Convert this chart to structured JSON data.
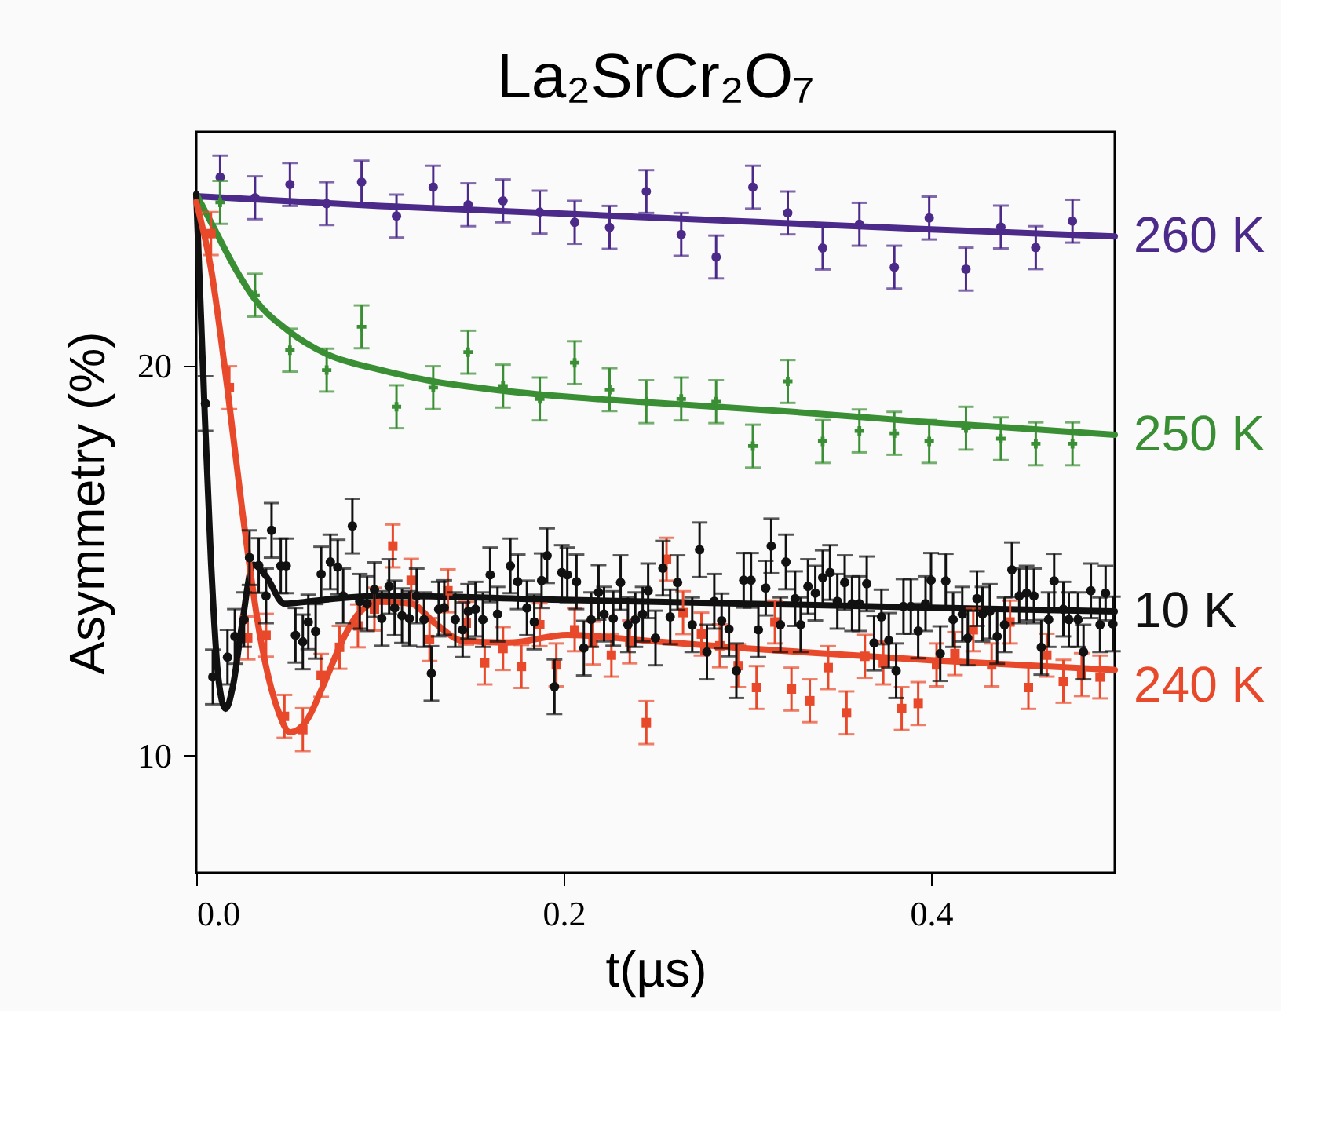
{
  "chart_data": {
    "type": "scatter",
    "title": "La₂SrCr₂O₇",
    "xlabel": "t(µs)",
    "ylabel": "Asymmetry (%)",
    "xlim": [
      0,
      0.5
    ],
    "ylim": [
      7,
      26
    ],
    "xticks": [
      {
        "value": 0,
        "label": "0.0"
      },
      {
        "value": 0.2,
        "label": "0.2"
      },
      {
        "value": 0.4,
        "label": "0.4"
      }
    ],
    "yticks": [
      10,
      20
    ],
    "grid": false,
    "series": [
      {
        "type": "scatter",
        "color": "#4b2a8a",
        "marker": "circle",
        "x": [
          0.013,
          0.032,
          0.051,
          0.071,
          0.09,
          0.109,
          0.129,
          0.148,
          0.167,
          0.187,
          0.206,
          0.225,
          0.245,
          0.264,
          0.283,
          0.303,
          0.322,
          0.341,
          0.361,
          0.38,
          0.399,
          0.419,
          0.438,
          0.457,
          0.477
        ],
        "values": [
          24.84,
          24.31,
          24.65,
          24.16,
          24.71,
          23.84,
          24.58,
          24.13,
          24.23,
          23.94,
          23.68,
          23.55,
          24.47,
          23.37,
          22.79,
          24.58,
          23.92,
          23.02,
          23.63,
          22.53,
          23.79,
          22.48,
          23.56,
          23.03,
          23.71
        ],
        "errors": [
          0.55,
          0.55,
          0.55,
          0.55,
          0.55,
          0.55,
          0.55,
          0.55,
          0.55,
          0.55,
          0.55,
          0.55,
          0.55,
          0.55,
          0.55,
          0.55,
          0.55,
          0.55,
          0.55,
          0.55,
          0.55,
          0.55,
          0.55,
          0.55,
          0.55
        ]
      },
      {
        "type": "scatter",
        "color": "#3a8f35",
        "marker": "cross",
        "x": [
          0.013,
          0.032,
          0.051,
          0.071,
          0.09,
          0.109,
          0.129,
          0.148,
          0.167,
          0.187,
          0.206,
          0.225,
          0.245,
          0.264,
          0.283,
          0.303,
          0.322,
          0.341,
          0.361,
          0.38,
          0.399,
          0.419,
          0.438,
          0.457,
          0.477
        ],
        "values": [
          24.19,
          21.81,
          20.4,
          19.89,
          21.0,
          18.95,
          19.44,
          20.35,
          19.48,
          19.15,
          20.08,
          19.39,
          19.08,
          19.15,
          19.08,
          17.94,
          19.6,
          18.06,
          18.33,
          18.27,
          18.06,
          18.4,
          18.13,
          18.0,
          18.0
        ],
        "errors": [
          0.55,
          0.55,
          0.55,
          0.55,
          0.55,
          0.55,
          0.55,
          0.55,
          0.55,
          0.55,
          0.55,
          0.55,
          0.55,
          0.55,
          0.55,
          0.55,
          0.55,
          0.55,
          0.55,
          0.55,
          0.55,
          0.55,
          0.55,
          0.55,
          0.55
        ]
      },
      {
        "type": "scatter",
        "color": "#e8492a",
        "marker": "square",
        "x": [
          0.008,
          0.018,
          0.028,
          0.038,
          0.048,
          0.058,
          0.068,
          0.078,
          0.088,
          0.097,
          0.107,
          0.117,
          0.127,
          0.137,
          0.147,
          0.157,
          0.167,
          0.177,
          0.187,
          0.196,
          0.206,
          0.216,
          0.226,
          0.236,
          0.245,
          0.256,
          0.265,
          0.275,
          0.285,
          0.295,
          0.305,
          0.315,
          0.324,
          0.334,
          0.344,
          0.354,
          0.364,
          0.374,
          0.384,
          0.393,
          0.403,
          0.413,
          0.423,
          0.433,
          0.443,
          0.453,
          0.463,
          0.472,
          0.482,
          0.492
        ],
        "values": [
          23.39,
          19.44,
          13.02,
          13.09,
          11.01,
          10.67,
          12.06,
          12.78,
          13.33,
          13.76,
          15.38,
          14.5,
          12.98,
          14.23,
          13.4,
          12.38,
          12.75,
          12.29,
          13.36,
          12.33,
          13.23,
          12.89,
          12.58,
          12.92,
          10.85,
          15.04,
          13.67,
          13.12,
          12.82,
          12.31,
          11.75,
          13.43,
          11.71,
          11.41,
          12.26,
          11.1,
          12.55,
          12.38,
          11.21,
          11.34,
          12.33,
          12.62,
          13.23,
          12.33,
          13.43,
          11.75,
          12.58,
          11.91,
          12.08,
          12.02
        ],
        "errors": [
          0.55,
          0.55,
          0.55,
          0.55,
          0.55,
          0.55,
          0.55,
          0.55,
          0.55,
          0.55,
          0.55,
          0.55,
          0.55,
          0.55,
          0.55,
          0.55,
          0.55,
          0.55,
          0.55,
          0.55,
          0.55,
          0.55,
          0.55,
          0.55,
          0.55,
          0.55,
          0.55,
          0.55,
          0.55,
          0.55,
          0.55,
          0.55,
          0.55,
          0.55,
          0.55,
          0.55,
          0.55,
          0.55,
          0.55,
          0.55,
          0.55,
          0.55,
          0.55,
          0.55,
          0.55,
          0.55,
          0.55,
          0.55,
          0.55,
          0.55
        ]
      },
      {
        "type": "scatter",
        "color": "#111111",
        "marker": "circle",
        "x": [
          0.005,
          0.009,
          0.017,
          0.021,
          0.026,
          0.029,
          0.034,
          0.038,
          0.041,
          0.046,
          0.049,
          0.054,
          0.058,
          0.061,
          0.065,
          0.068,
          0.073,
          0.077,
          0.08,
          0.085,
          0.089,
          0.093,
          0.097,
          0.101,
          0.105,
          0.108,
          0.112,
          0.116,
          0.12,
          0.124,
          0.128,
          0.132,
          0.135,
          0.141,
          0.145,
          0.148,
          0.152,
          0.156,
          0.16,
          0.164,
          0.171,
          0.175,
          0.18,
          0.184,
          0.188,
          0.191,
          0.195,
          0.199,
          0.202,
          0.207,
          0.211,
          0.215,
          0.219,
          0.222,
          0.227,
          0.231,
          0.235,
          0.239,
          0.243,
          0.246,
          0.25,
          0.254,
          0.258,
          0.262,
          0.27,
          0.274,
          0.278,
          0.282,
          0.286,
          0.29,
          0.294,
          0.298,
          0.302,
          0.306,
          0.31,
          0.313,
          0.318,
          0.321,
          0.326,
          0.329,
          0.333,
          0.337,
          0.341,
          0.345,
          0.349,
          0.353,
          0.357,
          0.361,
          0.365,
          0.369,
          0.373,
          0.377,
          0.381,
          0.385,
          0.389,
          0.393,
          0.397,
          0.4,
          0.405,
          0.408,
          0.412,
          0.417,
          0.42,
          0.425,
          0.428,
          0.432,
          0.436,
          0.44,
          0.444,
          0.448,
          0.452,
          0.456,
          0.46,
          0.464,
          0.467,
          0.472,
          0.475,
          0.48,
          0.483,
          0.487,
          0.492,
          0.495,
          0.499
        ],
        "values": [
          19.03,
          12.02,
          12.53,
          13.06,
          13.49,
          15.08,
          14.88,
          14.1,
          15.78,
          14.87,
          14.87,
          13.09,
          12.92,
          13.43,
          13.19,
          14.66,
          14.97,
          14.84,
          14.1,
          15.89,
          13.96,
          13.9,
          14.26,
          13.52,
          14.34,
          13.79,
          13.59,
          13.52,
          14.1,
          13.49,
          12.11,
          13.76,
          13.8,
          13.49,
          13.23,
          13.7,
          13.76,
          13.49,
          14.64,
          13.63,
          14.87,
          14.46,
          13.79,
          13.43,
          14.49,
          15.13,
          11.77,
          14.7,
          14.64,
          14.46,
          12.76,
          13.49,
          14.19,
          13.63,
          13.52,
          14.44,
          13.36,
          13.49,
          13.63,
          14.23,
          13.02,
          14.81,
          13.56,
          14.44,
          13.36,
          15.28,
          12.66,
          13.96,
          13.46,
          13.25,
          12.18,
          14.5,
          14.5,
          13.23,
          14.3,
          15.38,
          13.36,
          14.97,
          14.03,
          13.36,
          14.34,
          14.17,
          14.57,
          14.7,
          13.96,
          14.44,
          13.9,
          13.9,
          14.41,
          12.89,
          13.56,
          12.96,
          12.18,
          13.83,
          13.83,
          13.2,
          13.9,
          14.5,
          12.62,
          14.48,
          13.49,
          13.63,
          13.02,
          14.03,
          13.63,
          13.7,
          13.06,
          13.36,
          14.77,
          14.1,
          14.17,
          14.1,
          12.78,
          13.49,
          14.48,
          13.76,
          13.49,
          13.49,
          12.66,
          14.23,
          13.36,
          14.17,
          13.38
        ],
        "errors": [
          0.7,
          0.7,
          0.7,
          0.7,
          0.7,
          0.7,
          0.7,
          0.7,
          0.7,
          0.7,
          0.7,
          0.7,
          0.7,
          0.7,
          0.7,
          0.7,
          0.7,
          0.7,
          0.7,
          0.7,
          0.7,
          0.7,
          0.7,
          0.7,
          0.7,
          0.7,
          0.7,
          0.7,
          0.7,
          0.7,
          0.7,
          0.7,
          0.7,
          0.7,
          0.7,
          0.7,
          0.7,
          0.7,
          0.7,
          0.7,
          0.7,
          0.7,
          0.7,
          0.7,
          0.7,
          0.7,
          0.7,
          0.7,
          0.7,
          0.7,
          0.7,
          0.7,
          0.7,
          0.7,
          0.7,
          0.7,
          0.7,
          0.7,
          0.7,
          0.7,
          0.7,
          0.7,
          0.7,
          0.7,
          0.7,
          0.7,
          0.7,
          0.7,
          0.7,
          0.7,
          0.7,
          0.7,
          0.7,
          0.7,
          0.7,
          0.7,
          0.7,
          0.7,
          0.7,
          0.7,
          0.7,
          0.7,
          0.7,
          0.7,
          0.7,
          0.7,
          0.7,
          0.7,
          0.7,
          0.7,
          0.7,
          0.7,
          0.7,
          0.7,
          0.7,
          0.7,
          0.7,
          0.7,
          0.7,
          0.7,
          0.7,
          0.7,
          0.7,
          0.7,
          0.7,
          0.7,
          0.7,
          0.7,
          0.7,
          0.7,
          0.7,
          0.7,
          0.7,
          0.7,
          0.7,
          0.7,
          0.7,
          0.7,
          0.7,
          0.7,
          0.7,
          0.7,
          0.7
        ]
      },
      {
        "type": "line",
        "name": "260 K",
        "color": "#4b2a8a",
        "x": [
          0,
          0.1,
          0.2,
          0.3,
          0.4,
          0.5
        ],
        "values": [
          24.35,
          24.1,
          23.9,
          23.7,
          23.5,
          23.32
        ]
      },
      {
        "type": "line",
        "name": "250 K",
        "color": "#3a8f35",
        "x": [
          0,
          0.01,
          0.02,
          0.032,
          0.05,
          0.071,
          0.1,
          0.129,
          0.16,
          0.206,
          0.25,
          0.322,
          0.4,
          0.5
        ],
        "values": [
          24.4,
          23.5,
          22.6,
          21.7,
          20.9,
          20.3,
          19.9,
          19.6,
          19.4,
          19.19,
          19.05,
          18.83,
          18.55,
          18.23
        ]
      },
      {
        "type": "line",
        "name": "10 K",
        "color": "#111111",
        "x": [
          0,
          0.004,
          0.008,
          0.012,
          0.016,
          0.02,
          0.025,
          0.031,
          0.038,
          0.048,
          0.06,
          0.08,
          0.1,
          0.2,
          0.3,
          0.4,
          0.5
        ],
        "values": [
          24.4,
          19.5,
          15,
          12,
          11.2,
          11.8,
          13.4,
          14.9,
          14.6,
          13.9,
          13.95,
          14.05,
          14.1,
          14.0,
          13.9,
          13.8,
          13.7
        ]
      },
      {
        "type": "line",
        "name": "240 K",
        "color": "#e8492a",
        "x": [
          0,
          0.008,
          0.017,
          0.025,
          0.035,
          0.045,
          0.051,
          0.06,
          0.07,
          0.08,
          0.088,
          0.1,
          0.117,
          0.13,
          0.145,
          0.17,
          0.202,
          0.245,
          0.3,
          0.4,
          0.5
        ],
        "values": [
          24.2,
          22.5,
          19.4,
          16.3,
          13.0,
          11.1,
          10.6,
          10.9,
          11.9,
          13.0,
          13.63,
          13.95,
          13.9,
          13.4,
          12.95,
          12.9,
          13.1,
          12.95,
          12.75,
          12.45,
          12.2
        ]
      }
    ]
  }
}
